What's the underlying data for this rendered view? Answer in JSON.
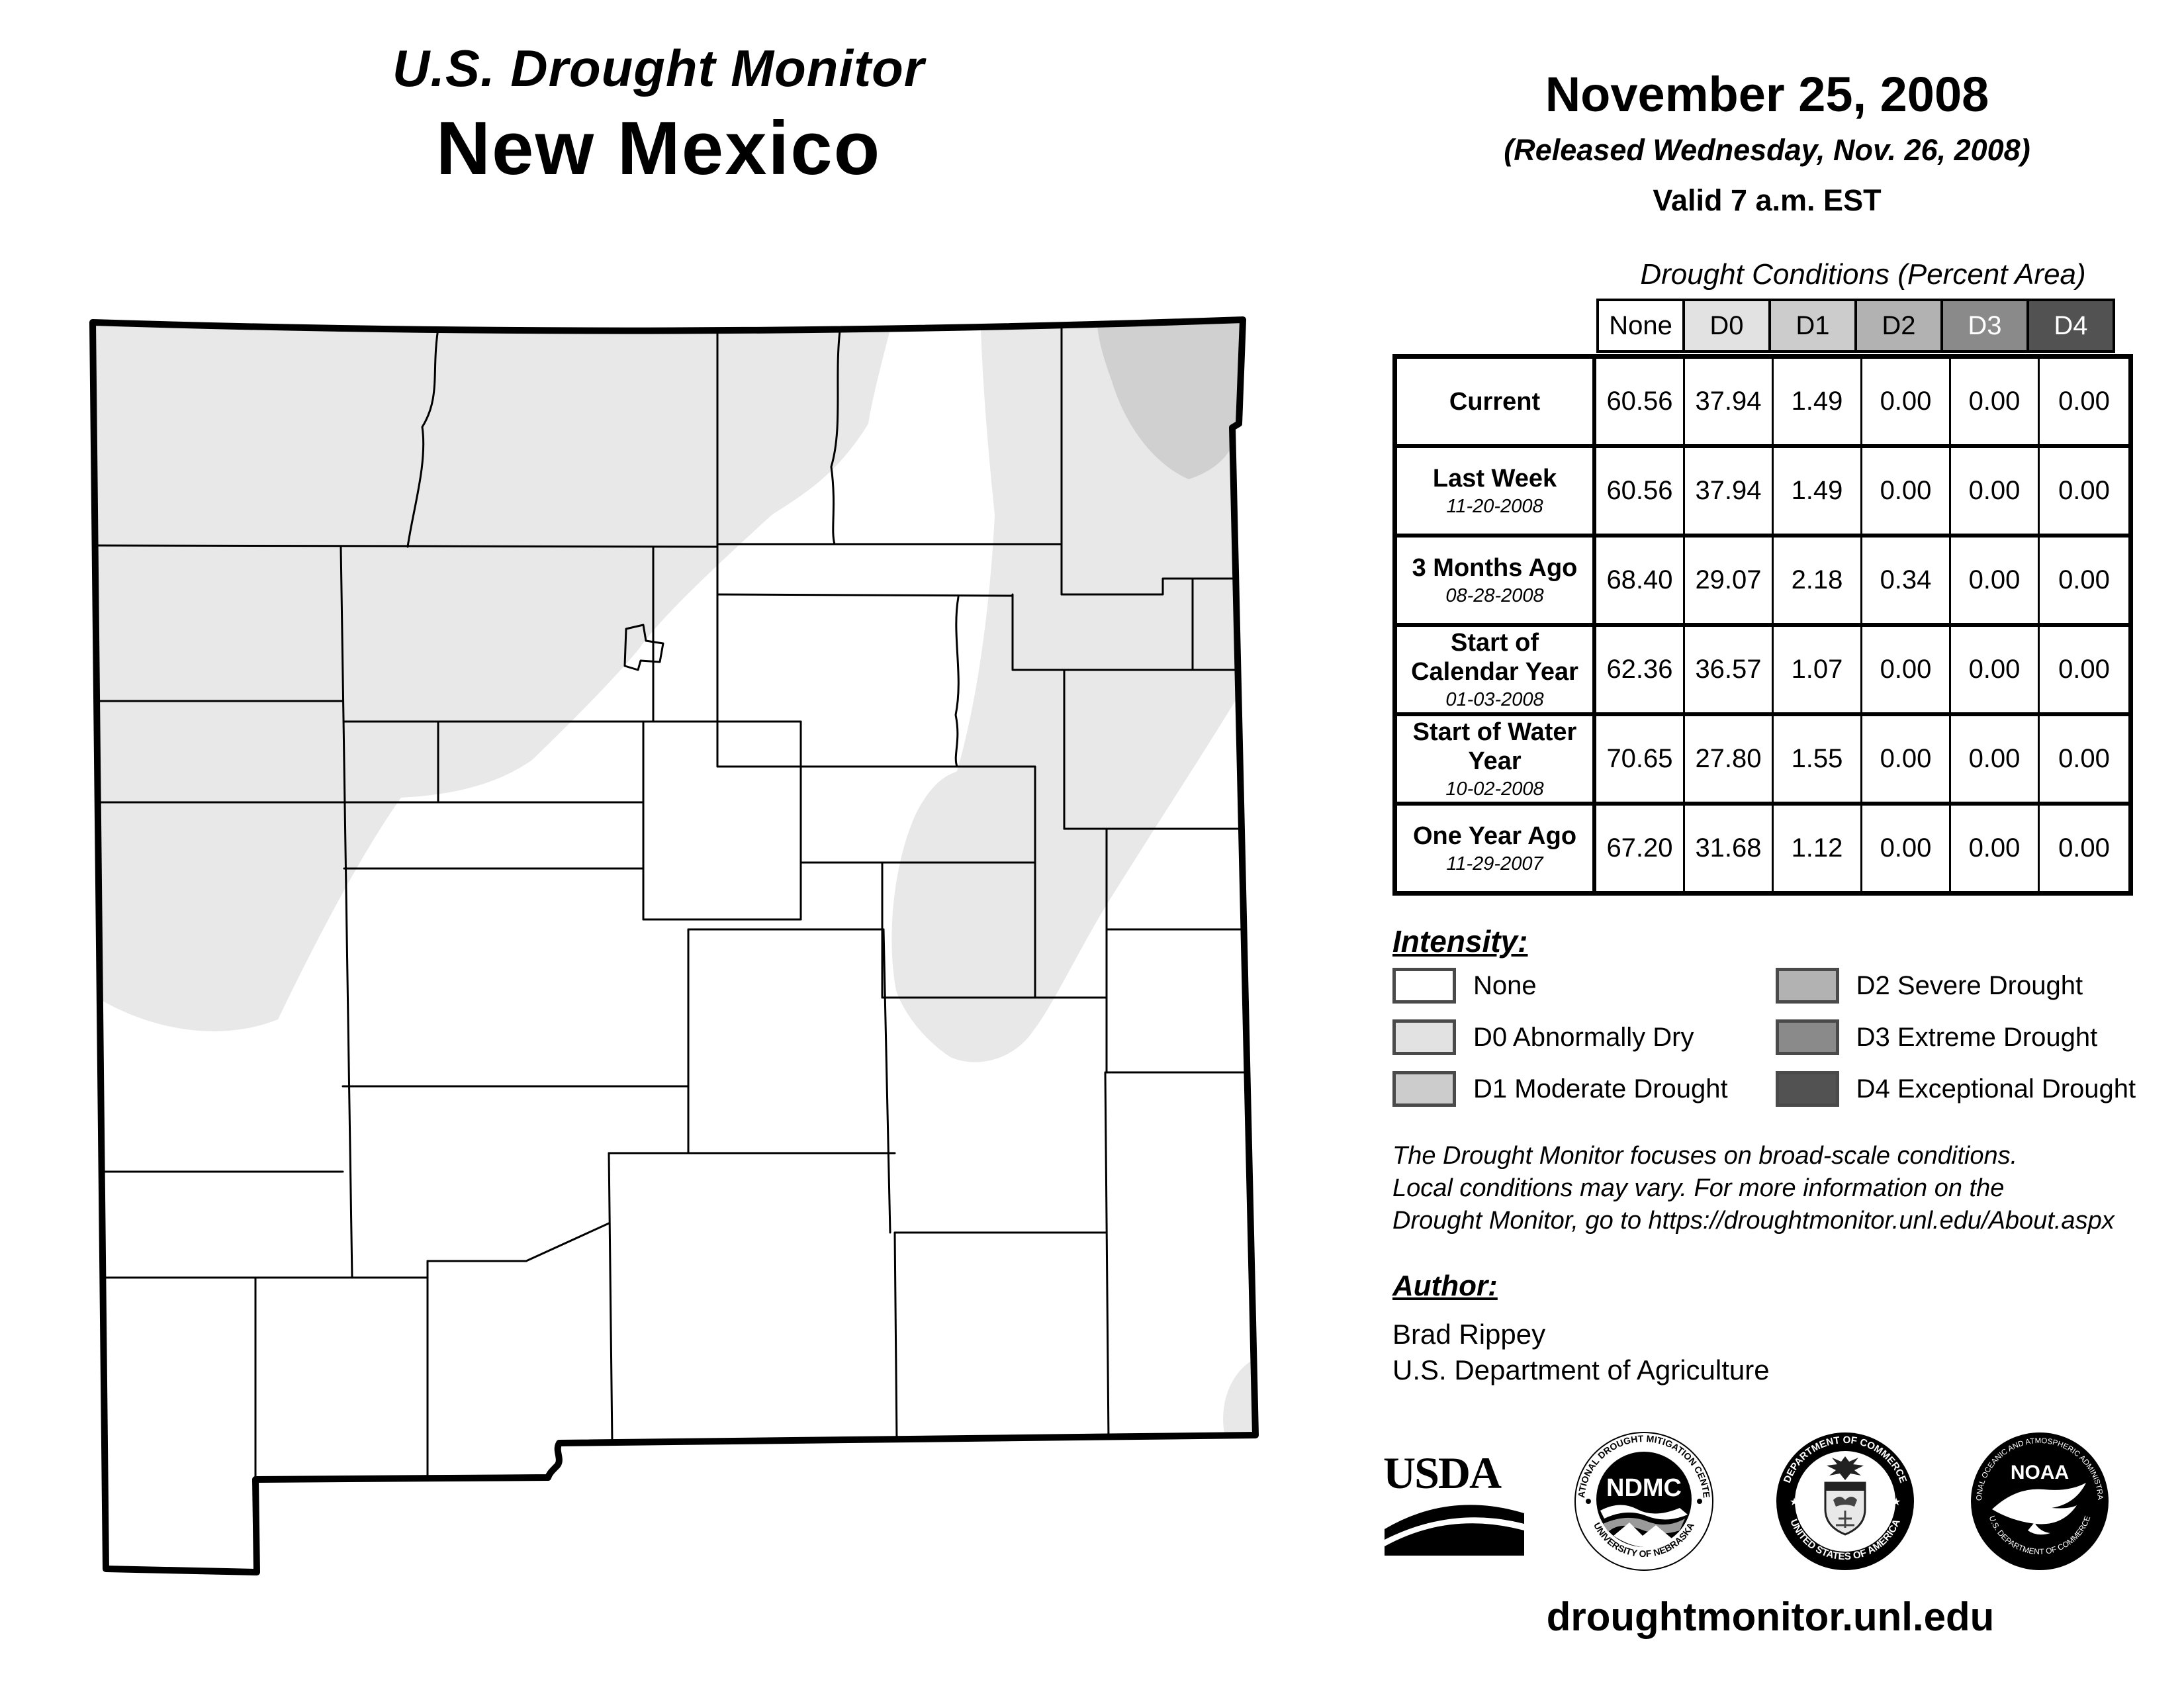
{
  "title": {
    "kicker": "U.S. Drought Monitor",
    "state": "New Mexico"
  },
  "release": {
    "date": "November 25, 2008",
    "released": "(Released Wednesday, Nov. 26, 2008)",
    "valid": "Valid 7 a.m. EST"
  },
  "table": {
    "caption": "Drought Conditions (Percent Area)",
    "columns": [
      {
        "label": "None",
        "bg": "#ffffff",
        "fg": "#000000"
      },
      {
        "label": "D0",
        "bg": "#e2e2e2",
        "fg": "#000000"
      },
      {
        "label": "D1",
        "bg": "#cccccc",
        "fg": "#000000"
      },
      {
        "label": "D2",
        "bg": "#b2b2b2",
        "fg": "#000000"
      },
      {
        "label": "D3",
        "bg": "#8a8a8a",
        "fg": "#ffffff"
      },
      {
        "label": "D4",
        "bg": "#525252",
        "fg": "#ffffff"
      }
    ],
    "rows": [
      {
        "label": "Current",
        "date": "",
        "values": [
          "60.56",
          "37.94",
          "1.49",
          "0.00",
          "0.00",
          "0.00"
        ]
      },
      {
        "label": "Last Week",
        "date": "11-20-2008",
        "values": [
          "60.56",
          "37.94",
          "1.49",
          "0.00",
          "0.00",
          "0.00"
        ]
      },
      {
        "label": "3 Months Ago",
        "date": "08-28-2008",
        "values": [
          "68.40",
          "29.07",
          "2.18",
          "0.34",
          "0.00",
          "0.00"
        ]
      },
      {
        "label": "Start of Calendar Year",
        "date": "01-03-2008",
        "values": [
          "62.36",
          "36.57",
          "1.07",
          "0.00",
          "0.00",
          "0.00"
        ]
      },
      {
        "label": "Start of Water Year",
        "date": "10-02-2008",
        "values": [
          "70.65",
          "27.80",
          "1.55",
          "0.00",
          "0.00",
          "0.00"
        ]
      },
      {
        "label": "One Year Ago",
        "date": "11-29-2007",
        "values": [
          "67.20",
          "31.68",
          "1.12",
          "0.00",
          "0.00",
          "0.00"
        ]
      }
    ]
  },
  "legend": {
    "heading": "Intensity:",
    "items": [
      {
        "label": "None",
        "color": "#ffffff"
      },
      {
        "label": "D0 Abnormally Dry",
        "color": "#e2e2e2"
      },
      {
        "label": "D1 Moderate Drought",
        "color": "#cccccc"
      },
      {
        "label": "D2 Severe Drought",
        "color": "#b2b2b2"
      },
      {
        "label": "D3 Extreme Drought",
        "color": "#8a8a8a"
      },
      {
        "label": "D4 Exceptional Drought",
        "color": "#525252"
      }
    ]
  },
  "disclaimer": {
    "line1": "The Drought Monitor focuses on broad-scale conditions.",
    "line2": "Local conditions may vary. For more information on the",
    "line3": "Drought Monitor, go to https://droughtmonitor.unl.edu/About.aspx"
  },
  "author": {
    "heading": "Author:",
    "name": "Brad Rippey",
    "org": "U.S. Department of Agriculture"
  },
  "footer": {
    "url": "droughtmonitor.unl.edu"
  },
  "logos": {
    "usda": {
      "text": "USDA"
    },
    "ndmc": {
      "center": "NDMC",
      "arc_top": "NATIONAL DROUGHT MITIGATION CENTER",
      "arc_bottom": "UNIVERSITY OF NEBRASKA"
    },
    "commerce": {
      "arc_top": "DEPARTMENT OF COMMERCE",
      "arc_bottom": "UNITED STATES OF AMERICA"
    },
    "noaa": {
      "text": "NOAA",
      "arc_top": "NATIONAL OCEANIC AND ATMOSPHERIC ADMINISTRATION",
      "arc_bottom": "U.S. DEPARTMENT OF COMMERCE"
    }
  },
  "map": {
    "state": "New Mexico",
    "none_color": "#ffffff",
    "d0_color": "#e8e8e8",
    "d1_color": "#d0d0d0",
    "line_color": "#000000",
    "shading": [
      {
        "level": "D0",
        "where": "northwest and north-central New Mexico, east-central lobe, small southeast-corner patch"
      },
      {
        "level": "D1",
        "where": "far northeast corner"
      }
    ]
  }
}
